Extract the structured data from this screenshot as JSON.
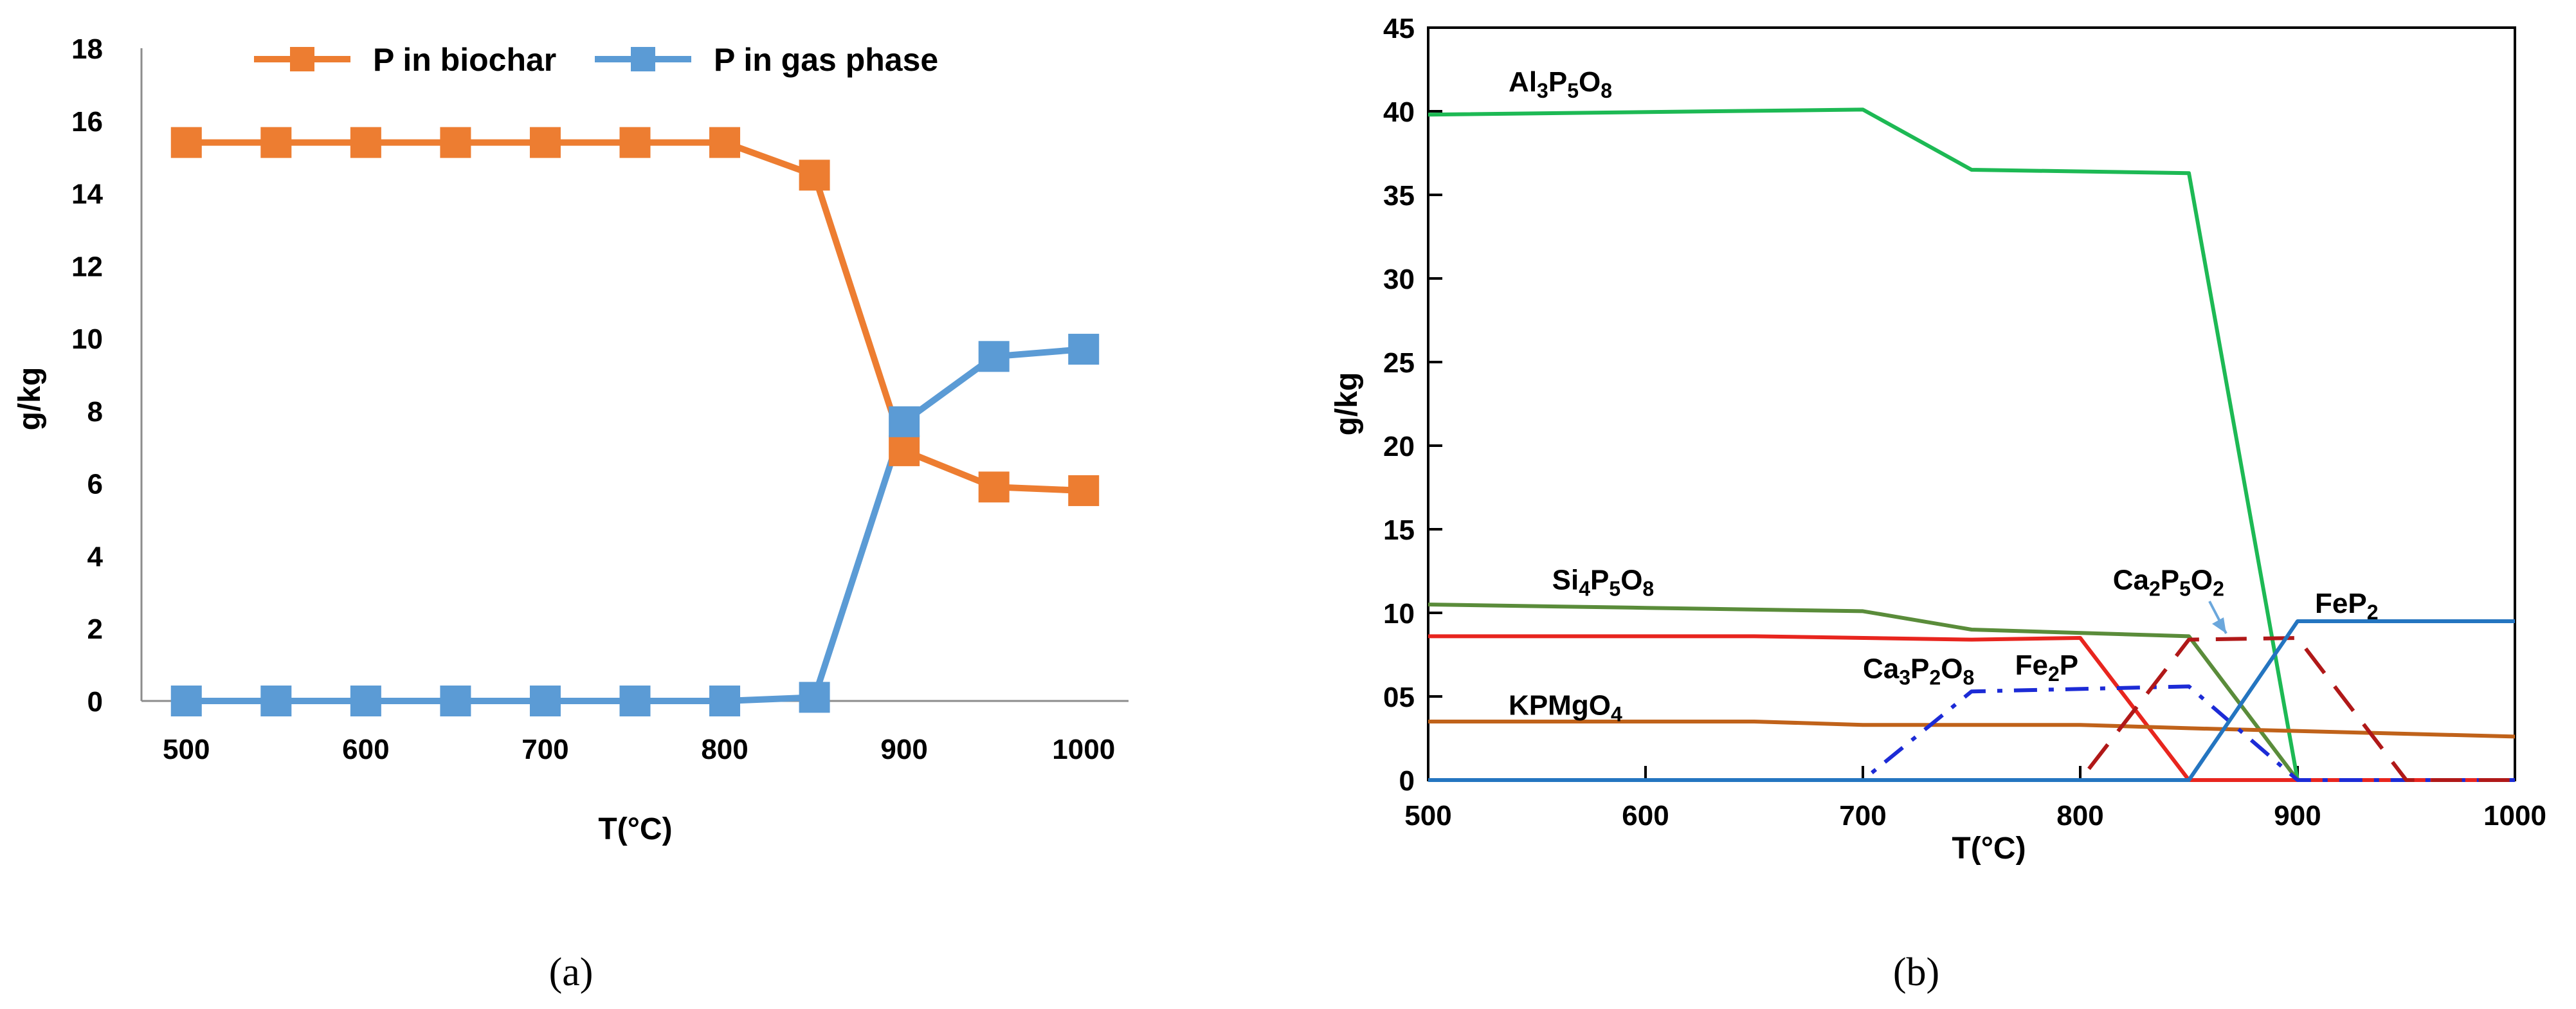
{
  "chart_data": [
    {
      "panel": "(a)",
      "type": "line",
      "xlabel": "T(°C)",
      "ylabel": "g/kg",
      "x": [
        500,
        550,
        600,
        650,
        700,
        750,
        800,
        850,
        900,
        950,
        1000
      ],
      "xticks": [
        500,
        600,
        700,
        800,
        900,
        1000
      ],
      "yticks": [
        0,
        2,
        4,
        6,
        8,
        10,
        12,
        14,
        16,
        18
      ],
      "ylim": [
        0,
        18
      ],
      "legend_position": "top",
      "series": [
        {
          "name": "P in biochar",
          "color": "#ED7D31",
          "values": [
            15.4,
            15.4,
            15.4,
            15.4,
            15.4,
            15.4,
            15.4,
            14.5,
            6.9,
            5.9,
            5.8
          ]
        },
        {
          "name": "P in gas phase",
          "color": "#5B9BD5",
          "values": [
            0.0,
            0.0,
            0.0,
            0.0,
            0.0,
            0.0,
            0.0,
            0.1,
            7.7,
            9.5,
            9.7
          ]
        }
      ]
    },
    {
      "panel": "(b)",
      "type": "line",
      "xlabel": "T(°C)",
      "ylabel": "g/kg",
      "xlim": [
        500,
        1000
      ],
      "ylim": [
        0,
        45
      ],
      "xticks": [
        500,
        600,
        700,
        800,
        900,
        1000
      ],
      "yticks": [
        0,
        5,
        10,
        15,
        20,
        25,
        30,
        35,
        40,
        45
      ],
      "ytick_labels": [
        "0",
        "05",
        "10",
        "15",
        "20",
        "25",
        "30",
        "35",
        "40",
        "45"
      ],
      "series": [
        {
          "name": "Al3P5O8",
          "color": "#1DB954",
          "x": [
            500,
            700,
            750,
            850,
            900,
            1000
          ],
          "values": [
            39.8,
            40.1,
            36.5,
            36.3,
            0,
            0
          ]
        },
        {
          "name": "Si4P5O8",
          "color": "#5A8C3A",
          "x": [
            500,
            600,
            700,
            750,
            850,
            900
          ],
          "values": [
            10.5,
            10.3,
            10.1,
            9.0,
            8.6,
            0
          ]
        },
        {
          "name": "Ca3P2O8",
          "color": "#E8251E",
          "x": [
            500,
            650,
            750,
            800,
            850,
            1000
          ],
          "values": [
            8.6,
            8.6,
            8.4,
            8.5,
            0,
            0
          ]
        },
        {
          "name": "KPMgO4",
          "color": "#C0621A",
          "x": [
            500,
            650,
            700,
            800,
            850,
            1000
          ],
          "values": [
            3.5,
            3.5,
            3.3,
            3.3,
            3.1,
            2.6
          ]
        },
        {
          "name": "Fe2P",
          "color": "#1C2BD6",
          "dash": "dashdot",
          "x": [
            500,
            700,
            750,
            850,
            900,
            1000
          ],
          "values": [
            0,
            0,
            5.3,
            5.6,
            0,
            0
          ]
        },
        {
          "name": "Ca2P5O2",
          "color": "#B01818",
          "dash": "dash",
          "x": [
            500,
            800,
            850,
            900,
            950,
            1000
          ],
          "values": [
            0,
            0,
            8.4,
            8.5,
            0,
            0
          ]
        },
        {
          "name": "FeP2",
          "color": "#2475C0",
          "x": [
            500,
            850,
            900,
            1000
          ],
          "values": [
            0,
            0,
            9.5,
            9.5
          ]
        }
      ],
      "labels": [
        {
          "series": "Al3P5O8",
          "parts": [
            [
              "Al",
              ""
            ],
            [
              "3",
              "sub"
            ],
            [
              "P",
              ""
            ],
            [
              "5",
              "sub"
            ],
            [
              "O",
              ""
            ],
            [
              "8",
              "sub"
            ]
          ]
        },
        {
          "series": "Si4P5O8",
          "parts": [
            [
              "Si",
              ""
            ],
            [
              "4",
              "sub"
            ],
            [
              "P",
              ""
            ],
            [
              "5",
              "sub"
            ],
            [
              "O",
              ""
            ],
            [
              "8",
              "sub"
            ]
          ]
        },
        {
          "series": "Ca3P2O8",
          "parts": [
            [
              "Ca",
              ""
            ],
            [
              "3",
              "sub"
            ],
            [
              "P",
              ""
            ],
            [
              "2",
              "sub"
            ],
            [
              "O",
              ""
            ],
            [
              "8",
              "sub"
            ]
          ]
        },
        {
          "series": "KPMgO4",
          "parts": [
            [
              "KPMgO",
              ""
            ],
            [
              "4",
              "sub"
            ]
          ]
        },
        {
          "series": "Fe2P",
          "parts": [
            [
              "Fe",
              ""
            ],
            [
              "2",
              "sub"
            ],
            [
              "P",
              ""
            ]
          ]
        },
        {
          "series": "Ca2P5O2",
          "parts": [
            [
              "Ca",
              ""
            ],
            [
              "2",
              "sub"
            ],
            [
              "P",
              ""
            ],
            [
              "5",
              "sub"
            ],
            [
              "O",
              ""
            ],
            [
              "2",
              "sub"
            ]
          ]
        },
        {
          "series": "FeP2",
          "parts": [
            [
              "FeP",
              ""
            ],
            [
              "2",
              "sub"
            ]
          ]
        }
      ]
    }
  ],
  "captions": {
    "a": "(a)",
    "b": "(b)"
  }
}
